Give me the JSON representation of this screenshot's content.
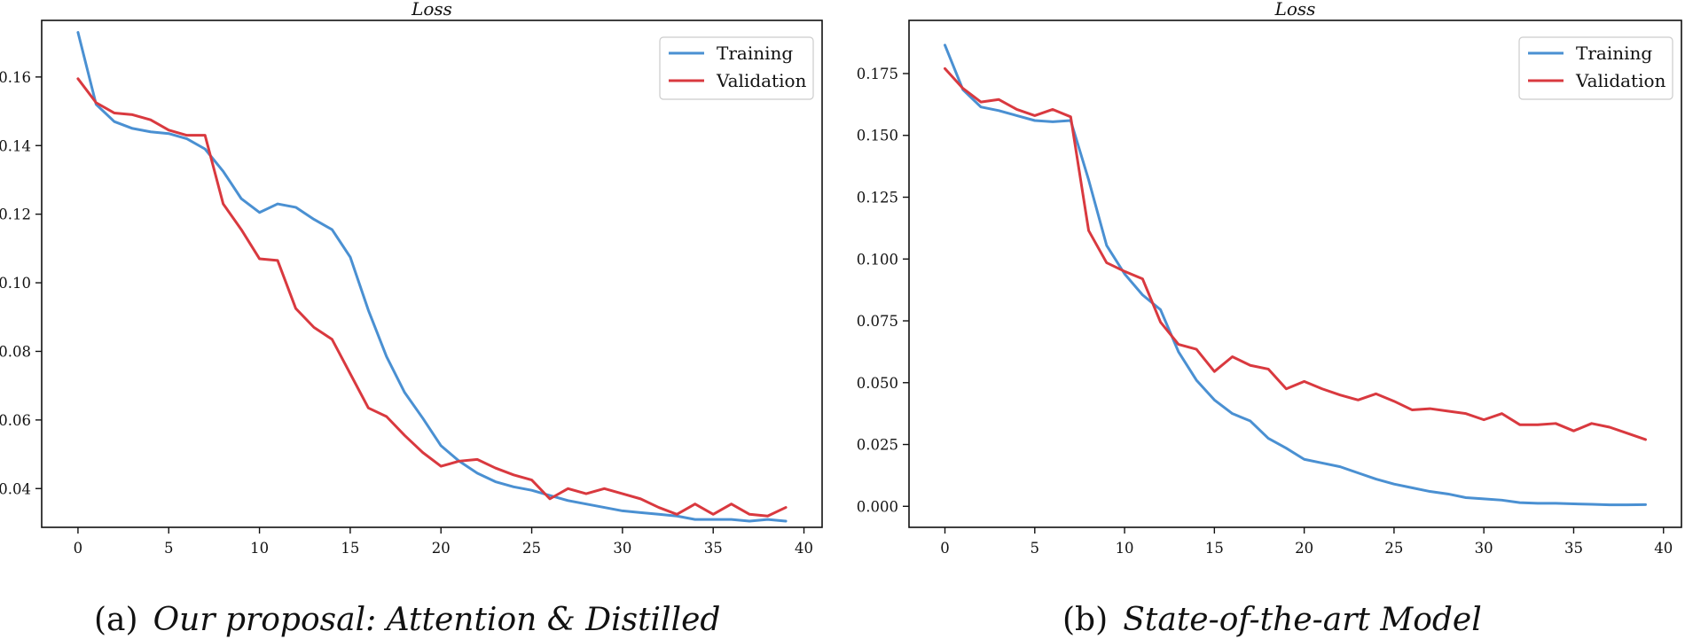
{
  "chart_data": [
    {
      "type": "line",
      "title": "Loss",
      "caption": {
        "label": "(a)",
        "title": "Our proposal: Attention & Distilled"
      },
      "xlabel": "",
      "ylabel": "",
      "xlim": [
        -2,
        41
      ],
      "ylim": [
        0.0287,
        0.1765
      ],
      "xticks": [
        0,
        5,
        10,
        15,
        20,
        25,
        30,
        35,
        40
      ],
      "xtick_labels": [
        "0",
        "5",
        "10",
        "15",
        "20",
        "25",
        "30",
        "35",
        "40"
      ],
      "yticks": [
        0.04,
        0.06,
        0.08,
        0.1,
        0.12,
        0.14,
        0.16
      ],
      "ytick_labels": [
        "0.04",
        "0.06",
        "0.08",
        "0.10",
        "0.12",
        "0.14",
        "0.16"
      ],
      "grid": false,
      "legend": {
        "position": "top-right",
        "entries": [
          "Training",
          "Validation"
        ]
      },
      "x": [
        0,
        1,
        2,
        3,
        4,
        5,
        6,
        7,
        8,
        9,
        10,
        11,
        12,
        13,
        14,
        15,
        16,
        17,
        18,
        19,
        20,
        21,
        22,
        23,
        24,
        25,
        26,
        27,
        28,
        29,
        30,
        31,
        32,
        33,
        34,
        35,
        36,
        37,
        38,
        39
      ],
      "series": [
        {
          "name": "Training",
          "color": "#4a90d2",
          "values": [
            0.173,
            0.152,
            0.147,
            0.145,
            0.144,
            0.1435,
            0.142,
            0.139,
            0.1325,
            0.1245,
            0.1205,
            0.123,
            0.122,
            0.1185,
            0.1155,
            0.1075,
            0.092,
            0.0785,
            0.068,
            0.0605,
            0.0525,
            0.048,
            0.0445,
            0.042,
            0.0405,
            0.0395,
            0.038,
            0.0365,
            0.0355,
            0.0345,
            0.0335,
            0.033,
            0.0325,
            0.032,
            0.031,
            0.031,
            0.031,
            0.0305,
            0.031,
            0.0305
          ]
        },
        {
          "name": "Validation",
          "color": "#d9393f",
          "values": [
            0.1595,
            0.1525,
            0.1495,
            0.149,
            0.1475,
            0.1445,
            0.143,
            0.143,
            0.123,
            0.1155,
            0.107,
            0.1065,
            0.0925,
            0.087,
            0.0835,
            0.0735,
            0.0635,
            0.061,
            0.0555,
            0.0505,
            0.0465,
            0.048,
            0.0485,
            0.046,
            0.044,
            0.0425,
            0.037,
            0.04,
            0.0385,
            0.04,
            0.0385,
            0.037,
            0.0345,
            0.0325,
            0.0355,
            0.0325,
            0.0355,
            0.0325,
            0.032,
            0.0345
          ]
        }
      ]
    },
    {
      "type": "line",
      "title": "Loss",
      "caption": {
        "label": "(b)",
        "title": "State-of-the-art Model"
      },
      "xlabel": "",
      "ylabel": "",
      "xlim": [
        -2,
        41
      ],
      "ylim": [
        -0.0085,
        0.1965
      ],
      "xticks": [
        0,
        5,
        10,
        15,
        20,
        25,
        30,
        35,
        40
      ],
      "xtick_labels": [
        "0",
        "5",
        "10",
        "15",
        "20",
        "25",
        "30",
        "35",
        "40"
      ],
      "yticks": [
        0.0,
        0.025,
        0.05,
        0.075,
        0.1,
        0.125,
        0.15,
        0.175
      ],
      "ytick_labels": [
        "0.000",
        "0.025",
        "0.050",
        "0.075",
        "0.100",
        "0.125",
        "0.150",
        "0.175"
      ],
      "grid": false,
      "legend": {
        "position": "top-right",
        "entries": [
          "Training",
          "Validation"
        ]
      },
      "x": [
        0,
        1,
        2,
        3,
        4,
        5,
        6,
        7,
        8,
        9,
        10,
        11,
        12,
        13,
        14,
        15,
        16,
        17,
        18,
        19,
        20,
        21,
        22,
        23,
        24,
        25,
        26,
        27,
        28,
        29,
        30,
        31,
        32,
        33,
        34,
        35,
        36,
        37,
        38,
        39
      ],
      "series": [
        {
          "name": "Training",
          "color": "#4a90d2",
          "values": [
            0.1865,
            0.1685,
            0.1615,
            0.16,
            0.158,
            0.156,
            0.1555,
            0.156,
            0.132,
            0.1055,
            0.094,
            0.0855,
            0.0795,
            0.0625,
            0.051,
            0.043,
            0.0375,
            0.0345,
            0.0275,
            0.0235,
            0.019,
            0.0175,
            0.016,
            0.0135,
            0.011,
            0.009,
            0.0075,
            0.006,
            0.005,
            0.0035,
            0.003,
            0.0025,
            0.0015,
            0.0012,
            0.0012,
            0.001,
            0.0008,
            0.0006,
            0.0006,
            0.0007
          ]
        },
        {
          "name": "Validation",
          "color": "#d9393f",
          "values": [
            0.177,
            0.169,
            0.1635,
            0.1645,
            0.1605,
            0.158,
            0.1605,
            0.1575,
            0.1115,
            0.0985,
            0.095,
            0.092,
            0.0745,
            0.0655,
            0.0635,
            0.0545,
            0.0605,
            0.057,
            0.0555,
            0.0475,
            0.0505,
            0.0475,
            0.045,
            0.043,
            0.0455,
            0.0425,
            0.039,
            0.0395,
            0.0385,
            0.0375,
            0.035,
            0.0375,
            0.033,
            0.033,
            0.0335,
            0.0305,
            0.0335,
            0.032,
            0.0295,
            0.027
          ]
        }
      ]
    }
  ]
}
